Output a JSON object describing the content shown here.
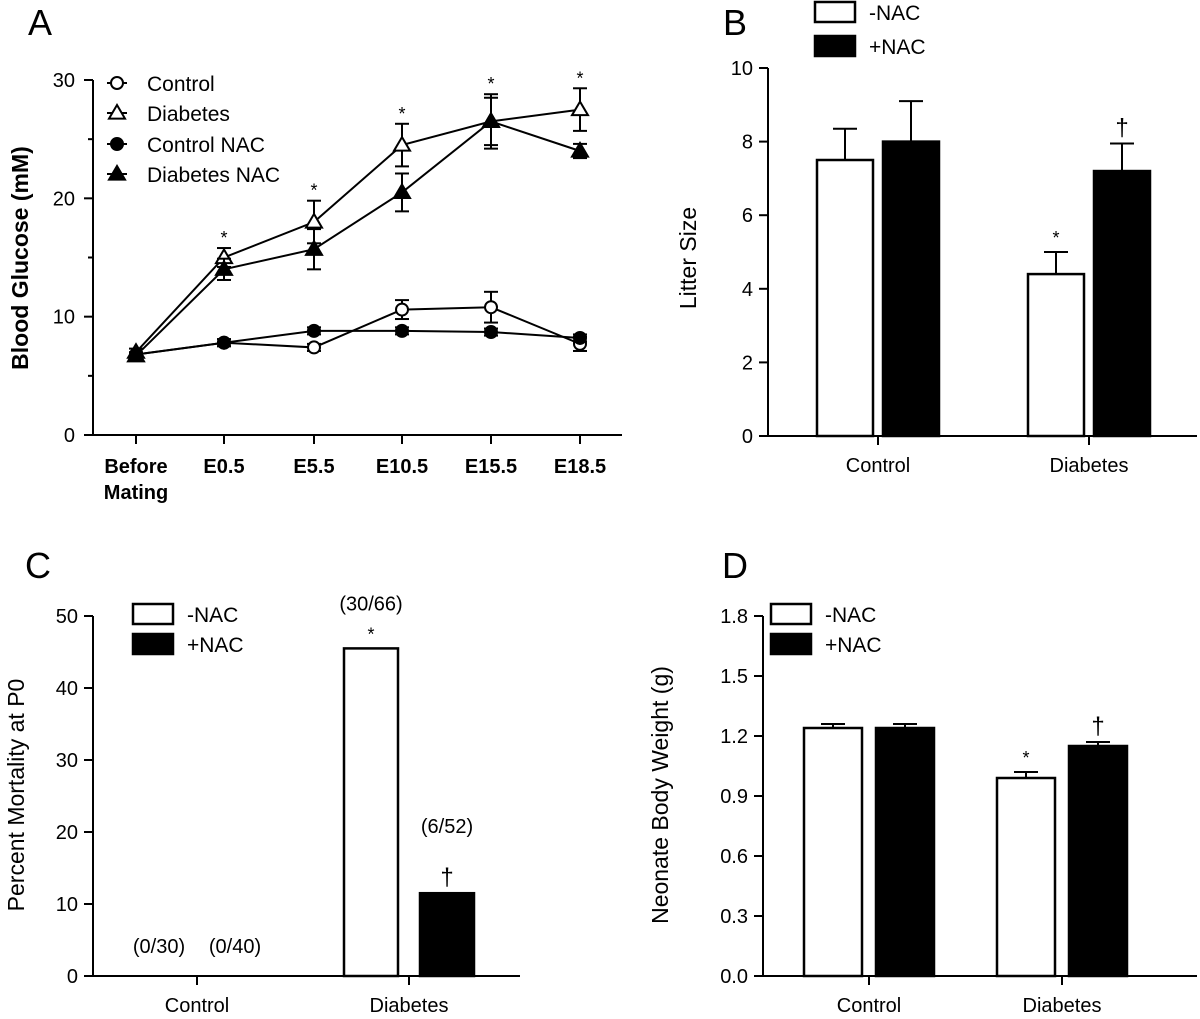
{
  "chart_data": [
    {
      "panel": "A",
      "type": "line",
      "ylabel": "Blood Glucose (mM)",
      "xlabel": "",
      "ylim": [
        0,
        30
      ],
      "yticks": [
        "0",
        "10",
        "20",
        "30"
      ],
      "categories": [
        "Before\nMating",
        "E0.5",
        "E5.5",
        "E10.5",
        "E15.5",
        "E18.5"
      ],
      "category_lines": [
        [
          "Before",
          "Mating"
        ],
        [
          "E0.5"
        ],
        [
          "E5.5"
        ],
        [
          "E10.5"
        ],
        [
          "E15.5"
        ],
        [
          "E18.5"
        ]
      ],
      "series": [
        {
          "name": "Control",
          "marker": "circle-open",
          "values": [
            6.8,
            7.8,
            7.4,
            10.6,
            10.8,
            7.7
          ],
          "errors": [
            0.2,
            0.3,
            0.3,
            0.8,
            1.3,
            0.6
          ]
        },
        {
          "name": "Diabetes",
          "marker": "triangle-open",
          "values": [
            7.0,
            15.0,
            18.0,
            24.5,
            26.5,
            27.5
          ],
          "errors": [
            0.3,
            0.8,
            1.8,
            1.8,
            2.0,
            1.8
          ]
        },
        {
          "name": "Control NAC",
          "marker": "circle-filled",
          "values": [
            6.8,
            7.8,
            8.8,
            8.8,
            8.7,
            8.2
          ],
          "errors": [
            0.2,
            0.3,
            0.3,
            0.3,
            0.3,
            0.3
          ]
        },
        {
          "name": "Diabetes NAC",
          "marker": "triangle-filled",
          "values": [
            6.7,
            14.0,
            15.7,
            20.5,
            26.5,
            24.0
          ],
          "errors": [
            0.3,
            0.9,
            1.7,
            1.6,
            2.3,
            0.6
          ]
        }
      ],
      "significance": [
        "",
        "*",
        "*",
        "*",
        "*",
        "*"
      ]
    },
    {
      "panel": "B",
      "type": "bar",
      "ylabel": "Litter Size",
      "ylim": [
        0,
        10
      ],
      "yticks": [
        "0",
        "2",
        "4",
        "6",
        "8",
        "10"
      ],
      "categories": [
        "Control",
        "Diabetes"
      ],
      "series": [
        {
          "name": "-NAC",
          "fill": "open",
          "values": [
            7.5,
            4.4
          ],
          "errors": [
            0.85,
            0.6
          ]
        },
        {
          "name": "+NAC",
          "fill": "filled",
          "values": [
            8.0,
            7.2
          ],
          "errors": [
            1.1,
            0.75
          ]
        }
      ],
      "annotations": {
        "-NAC": [
          "",
          "*"
        ],
        "+NAC": [
          "",
          "†"
        ]
      }
    },
    {
      "panel": "C",
      "type": "bar",
      "ylabel": "Percent Mortality  at  P0",
      "ylim": [
        0,
        50
      ],
      "yticks": [
        "0",
        "10",
        "20",
        "30",
        "40",
        "50"
      ],
      "categories": [
        "Control",
        "Diabetes"
      ],
      "series": [
        {
          "name": "-NAC",
          "fill": "open",
          "values": [
            0,
            45.5
          ],
          "errors": [
            0,
            0
          ]
        },
        {
          "name": "+NAC",
          "fill": "filled",
          "values": [
            0,
            11.5
          ],
          "errors": [
            0,
            0
          ]
        }
      ],
      "annotations": {
        "-NAC": [
          "",
          "*"
        ],
        "+NAC": [
          "",
          "†"
        ]
      },
      "ratios": {
        "-NAC": [
          "(0/30)",
          "(30/66)"
        ],
        "+NAC": [
          "(0/40)",
          "(6/52)"
        ]
      }
    },
    {
      "panel": "D",
      "type": "bar",
      "ylabel": "Neonate Body Weight (g)",
      "ylim": [
        0,
        1.8
      ],
      "yticks": [
        "0.0",
        "0.3",
        "0.6",
        "0.9",
        "1.2",
        "1.5",
        "1.8"
      ],
      "categories": [
        "Control",
        "Diabetes"
      ],
      "series": [
        {
          "name": "-NAC",
          "fill": "open",
          "values": [
            1.24,
            0.99
          ],
          "errors": [
            0.02,
            0.03
          ]
        },
        {
          "name": "+NAC",
          "fill": "filled",
          "values": [
            1.24,
            1.15
          ],
          "errors": [
            0.02,
            0.02
          ]
        }
      ],
      "annotations": {
        "-NAC": [
          "",
          "*"
        ],
        "+NAC": [
          "",
          "†"
        ]
      }
    }
  ]
}
